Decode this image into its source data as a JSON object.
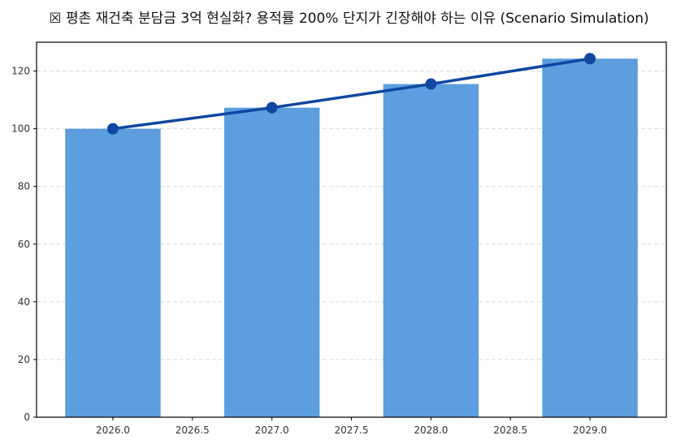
{
  "title": "☒ 평촌 재건축 분담금 3억 현실화? 용적률 200% 단지가 긴장해야 하는 이유 (Scenario Simulation)",
  "colors": {
    "bar": "#5c9ede",
    "line": "#0f47a1",
    "grid": "#d9d9d9",
    "axis": "#000000"
  },
  "chart_data": {
    "type": "bar+line",
    "title": "☒ 평촌 재건축 분담금 3억 현실화? 용적률 200% 단지가 긴장해야 하는 이유 (Scenario Simulation)",
    "xlabel": "",
    "ylabel": "",
    "x": [
      2026,
      2027,
      2028,
      2029
    ],
    "series": [
      {
        "name": "bar",
        "type": "bar",
        "values": [
          100.0,
          107.3,
          115.5,
          124.3
        ]
      },
      {
        "name": "line",
        "type": "line",
        "marker": "circle",
        "values": [
          100.0,
          107.3,
          115.5,
          124.3
        ]
      }
    ],
    "xlim": [
      2025.52,
      2029.48
    ],
    "ylim": [
      0,
      130
    ],
    "xticks": [
      "2026.0",
      "2026.5",
      "2027.0",
      "2027.5",
      "2028.0",
      "2028.5",
      "2029.0"
    ],
    "yticks": [
      "0",
      "20",
      "40",
      "60",
      "80",
      "100",
      "120"
    ],
    "grid": {
      "y": true,
      "x": false,
      "style": "dashed"
    },
    "legend": null
  }
}
